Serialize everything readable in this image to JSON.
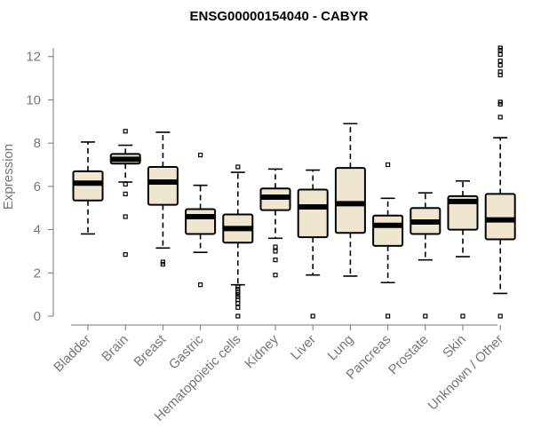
{
  "chart_data": {
    "type": "box",
    "title": "ENSG00000154040 - CABYR",
    "ylabel": "Expression",
    "xlabel": "",
    "ylim": [
      0,
      12.4
    ],
    "yticks": [
      0,
      2,
      4,
      6,
      8,
      10,
      12
    ],
    "grid": false,
    "categories": [
      "Bladder",
      "Brain",
      "Breast",
      "Gastric",
      "Hematopoietic cells",
      "Kidney",
      "Liver",
      "Lung",
      "Pancreas",
      "Prostate",
      "Skin",
      "Unknown / Other"
    ],
    "boxes": [
      {
        "category": "Bladder",
        "whisker_low": 3.8,
        "q1": 5.35,
        "median": 6.15,
        "q3": 6.7,
        "whisker_high": 8.05,
        "outliers": []
      },
      {
        "category": "Brain",
        "whisker_low": 6.2,
        "q1": 7.05,
        "median": 7.25,
        "q3": 7.5,
        "whisker_high": 7.9,
        "outliers": [
          8.55,
          6.1,
          5.65,
          4.6,
          2.85
        ]
      },
      {
        "category": "Breast",
        "whisker_low": 3.15,
        "q1": 5.15,
        "median": 6.2,
        "q3": 6.9,
        "whisker_high": 8.5,
        "outliers": [
          2.5,
          2.4
        ]
      },
      {
        "category": "Gastric",
        "whisker_low": 2.95,
        "q1": 3.8,
        "median": 4.6,
        "q3": 4.95,
        "whisker_high": 6.05,
        "outliers": [
          7.45,
          1.45
        ]
      },
      {
        "category": "Hematopoietic cells",
        "whisker_low": 1.45,
        "q1": 3.4,
        "median": 4.05,
        "q3": 4.7,
        "whisker_high": 6.65,
        "outliers": [
          6.9,
          1.35,
          1.25,
          1.1,
          1.0,
          0.9,
          0.75,
          0.6,
          0.4,
          0.0
        ]
      },
      {
        "category": "Kidney",
        "whisker_low": 3.6,
        "q1": 4.9,
        "median": 5.5,
        "q3": 5.9,
        "whisker_high": 6.8,
        "outliers": [
          3.2,
          3.0,
          2.6,
          1.9
        ]
      },
      {
        "category": "Liver",
        "whisker_low": 1.9,
        "q1": 3.65,
        "median": 5.05,
        "q3": 5.85,
        "whisker_high": 6.75,
        "outliers": [
          0.0
        ]
      },
      {
        "category": "Lung",
        "whisker_low": 1.85,
        "q1": 3.85,
        "median": 5.2,
        "q3": 6.85,
        "whisker_high": 8.9,
        "outliers": []
      },
      {
        "category": "Pancreas",
        "whisker_low": 1.55,
        "q1": 3.25,
        "median": 4.2,
        "q3": 4.65,
        "whisker_high": 5.45,
        "outliers": [
          7.0,
          0.0
        ]
      },
      {
        "category": "Prostate",
        "whisker_low": 2.6,
        "q1": 3.8,
        "median": 4.35,
        "q3": 5.0,
        "whisker_high": 5.7,
        "outliers": [
          0.0
        ]
      },
      {
        "category": "Skin",
        "whisker_low": 2.75,
        "q1": 4.0,
        "median": 5.3,
        "q3": 5.55,
        "whisker_high": 6.25,
        "outliers": [
          0.0
        ]
      },
      {
        "category": "Unknown / Other",
        "whisker_low": 1.05,
        "q1": 3.55,
        "median": 4.45,
        "q3": 5.65,
        "whisker_high": 8.25,
        "outliers": [
          12.4,
          12.3,
          12.1,
          11.8,
          11.6,
          11.3,
          11.15,
          9.9,
          9.8,
          9.2,
          0.0
        ]
      }
    ]
  }
}
